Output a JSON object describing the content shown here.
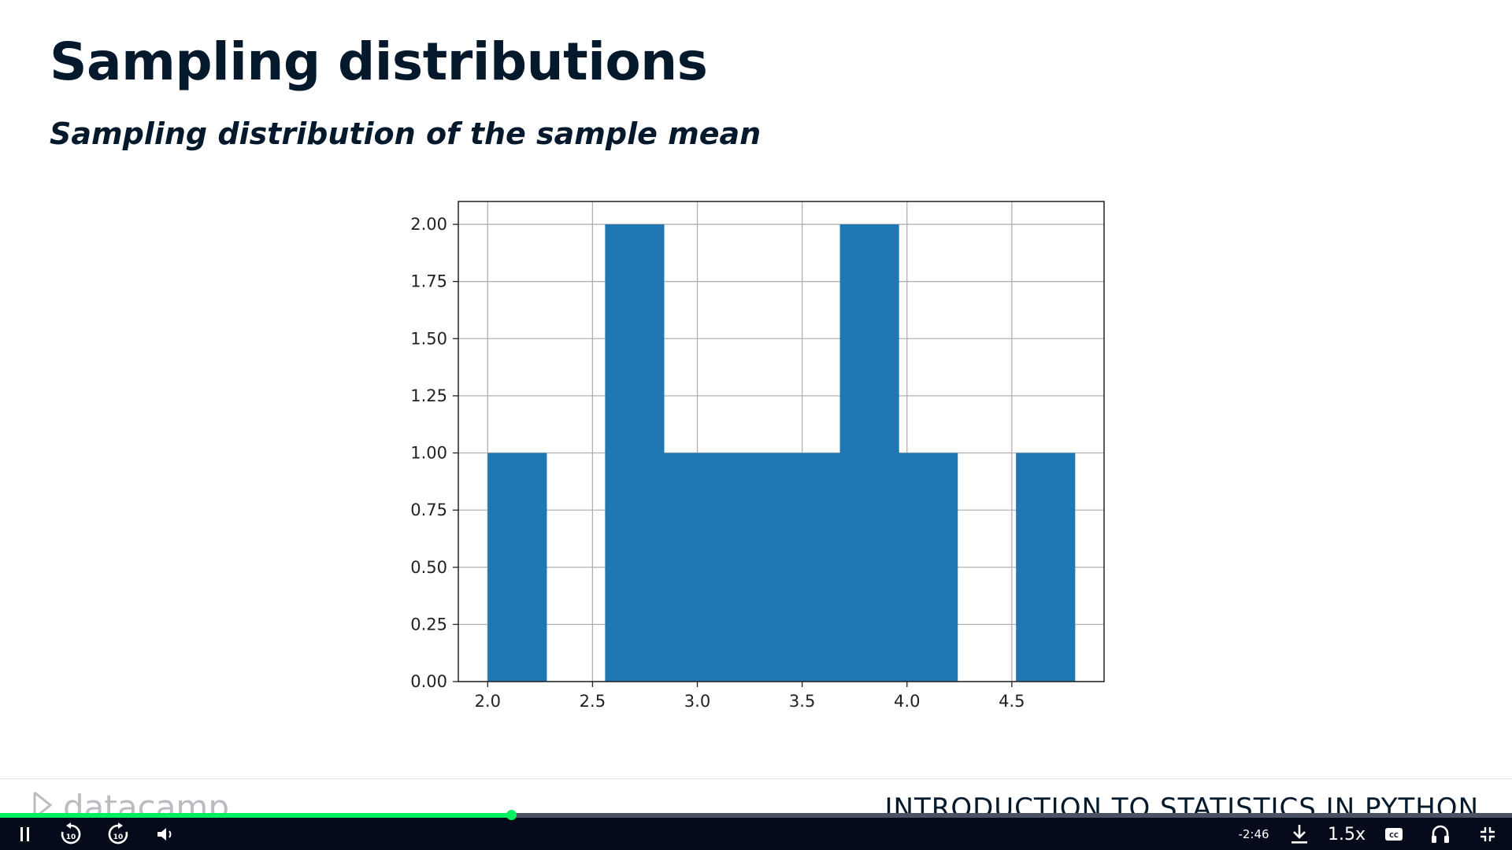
{
  "slide": {
    "title": "Sampling distributions",
    "subtitle": "Sampling distribution of the sample mean"
  },
  "chart_data": {
    "type": "bar",
    "subtype": "histogram",
    "bins": [
      {
        "start": 2.0,
        "end": 2.28,
        "count": 1
      },
      {
        "start": 2.28,
        "end": 2.56,
        "count": 0
      },
      {
        "start": 2.56,
        "end": 2.84,
        "count": 2
      },
      {
        "start": 2.84,
        "end": 3.12,
        "count": 1
      },
      {
        "start": 3.12,
        "end": 3.4,
        "count": 1
      },
      {
        "start": 3.4,
        "end": 3.68,
        "count": 1
      },
      {
        "start": 3.68,
        "end": 3.96,
        "count": 2
      },
      {
        "start": 3.96,
        "end": 4.24,
        "count": 1
      },
      {
        "start": 4.24,
        "end": 4.52,
        "count": 0
      },
      {
        "start": 4.52,
        "end": 4.8,
        "count": 1
      }
    ],
    "xlim": [
      1.86,
      4.94
    ],
    "ylim": [
      0,
      2.1
    ],
    "xticks": [
      "2.0",
      "2.5",
      "3.0",
      "3.5",
      "4.0",
      "4.5"
    ],
    "yticks": [
      "0.00",
      "0.25",
      "0.50",
      "0.75",
      "1.00",
      "1.25",
      "1.50",
      "1.75",
      "2.00"
    ],
    "grid": true,
    "bar_color": "#1f77b4",
    "title": "",
    "xlabel": "",
    "ylabel": ""
  },
  "footer": {
    "logo_text": "datacamp",
    "course_title": "INTRODUCTION TO STATISTICS IN PYTHON"
  },
  "player": {
    "progress_fraction": 0.338,
    "time_remaining": "-2:46",
    "speed": "1.5x",
    "rewind_seconds": "10",
    "forward_seconds": "10",
    "icons": [
      "pause-icon",
      "rewind-10-icon",
      "forward-10-icon",
      "volume-icon",
      "download-icon",
      "captions-icon",
      "audio-headphones-icon",
      "exit-fullscreen-icon"
    ],
    "accent_color": "#03ef62"
  }
}
